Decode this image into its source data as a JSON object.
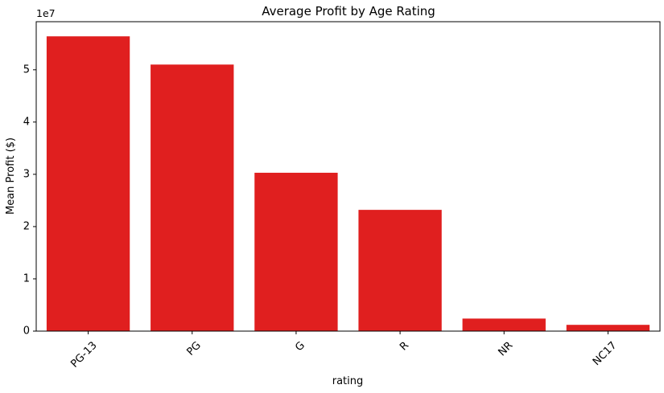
{
  "chart_data": {
    "type": "bar",
    "title": "Average Profit by Age Rating",
    "xlabel": "rating",
    "ylabel": "Mean Profit ($)",
    "y_offset_label": "1e7",
    "categories": [
      "PG-13",
      "PG",
      "G",
      "R",
      "NR",
      "NC17"
    ],
    "values": [
      56400000,
      51000000,
      30300000,
      23200000,
      2400000,
      1200000
    ],
    "y_ticks": [
      0,
      10000000,
      20000000,
      30000000,
      40000000,
      50000000
    ],
    "y_tick_labels": [
      "0",
      "1",
      "2",
      "3",
      "4",
      "5"
    ],
    "ylim": [
      0,
      59200000
    ],
    "bar_color": "#e01f1f",
    "grid": false,
    "x_tick_rotation_deg": 45
  }
}
